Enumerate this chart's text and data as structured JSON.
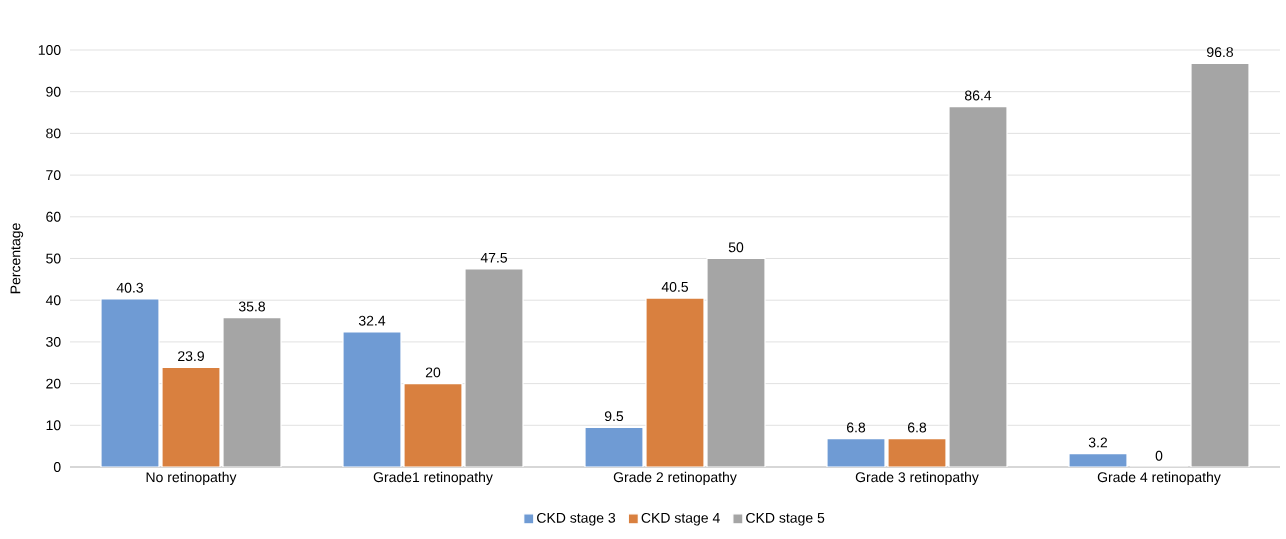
{
  "chart_data": {
    "type": "bar",
    "ylabel": "Percentage",
    "categories": [
      "No retinopathy",
      "Grade1 retinopathy",
      "Grade 2 retinopathy",
      "Grade 3 retinopathy",
      "Grade 4 retinopathy"
    ],
    "series": [
      {
        "name": "CKD stage 3",
        "color": "#6f9bd4",
        "values": [
          40.3,
          32.4,
          9.5,
          6.8,
          3.2
        ]
      },
      {
        "name": "CKD stage 4",
        "color": "#d9803f",
        "values": [
          23.9,
          20,
          40.5,
          6.8,
          0
        ]
      },
      {
        "name": "CKD stage 5",
        "color": "#a5a5a5",
        "values": [
          35.8,
          47.5,
          50,
          86.4,
          96.8
        ]
      }
    ],
    "ylim": [
      0,
      100
    ],
    "yticks": [
      0,
      10,
      20,
      30,
      40,
      50,
      60,
      70,
      80,
      90,
      100
    ],
    "grid": "y",
    "legend": "bottom",
    "data_labels": true
  }
}
